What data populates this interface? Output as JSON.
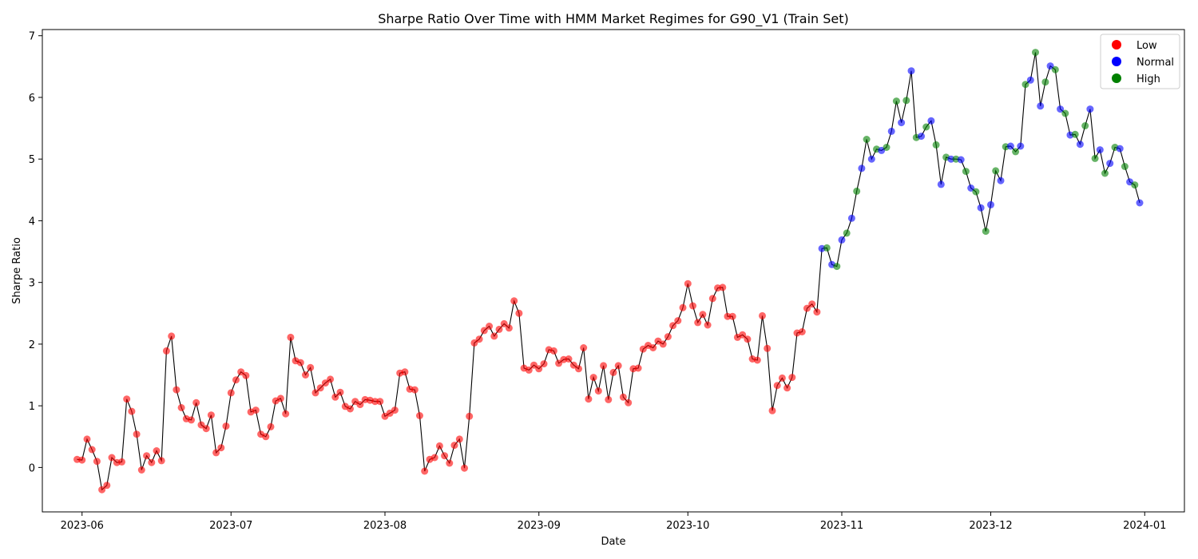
{
  "chart_data": {
    "type": "scatter",
    "title": "Sharpe Ratio Over Time with HMM Market Regimes for G90_V1 (Train Set)",
    "xlabel": "Date",
    "ylabel": "Sharpe Ratio",
    "xlim": [
      "2023-05-24",
      "2024-01-09"
    ],
    "ylim": [
      -0.72,
      7.1
    ],
    "xticks": [
      "2023-06",
      "2023-07",
      "2023-08",
      "2023-09",
      "2023-10",
      "2023-11",
      "2023-12",
      "2024-01"
    ],
    "yticks": [
      0,
      1,
      2,
      3,
      4,
      5,
      6,
      7
    ],
    "grid": false,
    "legend_position": "top-right",
    "line_color": "#000000",
    "regimes": [
      {
        "name": "Low",
        "color": "#ff0000"
      },
      {
        "name": "Normal",
        "color": "#0000ff"
      },
      {
        "name": "High",
        "color": "#008000"
      }
    ],
    "x": [
      "2023-05-31",
      "2023-06-01",
      "2023-06-02",
      "2023-06-03",
      "2023-06-04",
      "2023-06-05",
      "2023-06-06",
      "2023-06-07",
      "2023-06-08",
      "2023-06-09",
      "2023-06-10",
      "2023-06-11",
      "2023-06-12",
      "2023-06-13",
      "2023-06-14",
      "2023-06-15",
      "2023-06-16",
      "2023-06-17",
      "2023-06-18",
      "2023-06-19",
      "2023-06-20",
      "2023-06-21",
      "2023-06-22",
      "2023-06-23",
      "2023-06-24",
      "2023-06-25",
      "2023-06-26",
      "2023-06-27",
      "2023-06-28",
      "2023-06-29",
      "2023-06-30",
      "2023-07-01",
      "2023-07-02",
      "2023-07-03",
      "2023-07-04",
      "2023-07-05",
      "2023-07-06",
      "2023-07-07",
      "2023-07-08",
      "2023-07-09",
      "2023-07-10",
      "2023-07-11",
      "2023-07-12",
      "2023-07-13",
      "2023-07-14",
      "2023-07-15",
      "2023-07-16",
      "2023-07-17",
      "2023-07-18",
      "2023-07-19",
      "2023-07-20",
      "2023-07-21",
      "2023-07-22",
      "2023-07-23",
      "2023-07-24",
      "2023-07-25",
      "2023-07-26",
      "2023-07-27",
      "2023-07-28",
      "2023-07-29",
      "2023-07-30",
      "2023-07-31",
      "2023-08-01",
      "2023-08-02",
      "2023-08-03",
      "2023-08-04",
      "2023-08-05",
      "2023-08-06",
      "2023-08-07",
      "2023-08-08",
      "2023-08-09",
      "2023-08-10",
      "2023-08-11",
      "2023-08-12",
      "2023-08-13",
      "2023-08-14",
      "2023-08-15",
      "2023-08-16",
      "2023-08-17",
      "2023-08-18",
      "2023-08-19",
      "2023-08-20",
      "2023-08-21",
      "2023-08-22",
      "2023-08-23",
      "2023-08-24",
      "2023-08-25",
      "2023-08-26",
      "2023-08-27",
      "2023-08-28",
      "2023-08-29",
      "2023-08-30",
      "2023-08-31",
      "2023-09-01",
      "2023-09-02",
      "2023-09-03",
      "2023-09-04",
      "2023-09-05",
      "2023-09-06",
      "2023-09-07",
      "2023-09-08",
      "2023-09-09",
      "2023-09-10",
      "2023-09-11",
      "2023-09-12",
      "2023-09-13",
      "2023-09-14",
      "2023-09-15",
      "2023-09-16",
      "2023-09-17",
      "2023-09-18",
      "2023-09-19",
      "2023-09-20",
      "2023-09-21",
      "2023-09-22",
      "2023-09-23",
      "2023-09-24",
      "2023-09-25",
      "2023-09-26",
      "2023-09-27",
      "2023-09-28",
      "2023-09-29",
      "2023-09-30",
      "2023-10-01",
      "2023-10-02",
      "2023-10-03",
      "2023-10-04",
      "2023-10-05",
      "2023-10-06",
      "2023-10-07",
      "2023-10-08",
      "2023-10-09",
      "2023-10-10",
      "2023-10-11",
      "2023-10-12",
      "2023-10-13",
      "2023-10-14",
      "2023-10-15",
      "2023-10-16",
      "2023-10-17",
      "2023-10-18",
      "2023-10-19",
      "2023-10-20",
      "2023-10-21",
      "2023-10-22",
      "2023-10-23",
      "2023-10-24",
      "2023-10-25",
      "2023-10-26",
      "2023-10-27",
      "2023-10-28",
      "2023-10-29",
      "2023-10-30",
      "2023-10-31",
      "2023-11-01",
      "2023-11-02",
      "2023-11-03",
      "2023-11-04",
      "2023-11-05",
      "2023-11-06",
      "2023-11-07",
      "2023-11-08",
      "2023-11-09",
      "2023-11-10",
      "2023-11-11",
      "2023-11-12",
      "2023-11-13",
      "2023-11-14",
      "2023-11-15",
      "2023-11-16",
      "2023-11-17",
      "2023-11-18",
      "2023-11-19",
      "2023-11-20",
      "2023-11-21",
      "2023-11-22",
      "2023-11-23",
      "2023-11-24",
      "2023-11-25",
      "2023-11-26",
      "2023-11-27",
      "2023-11-28",
      "2023-11-29",
      "2023-11-30",
      "2023-12-01",
      "2023-12-02",
      "2023-12-03",
      "2023-12-04",
      "2023-12-05",
      "2023-12-06",
      "2023-12-07",
      "2023-12-08",
      "2023-12-09",
      "2023-12-10",
      "2023-12-11",
      "2023-12-12",
      "2023-12-13",
      "2023-12-14",
      "2023-12-15",
      "2023-12-16",
      "2023-12-17",
      "2023-12-18",
      "2023-12-19",
      "2023-12-20",
      "2023-12-21",
      "2023-12-22",
      "2023-12-23",
      "2023-12-24",
      "2023-12-25",
      "2023-12-26",
      "2023-12-27",
      "2023-12-28",
      "2023-12-29",
      "2023-12-30",
      "2023-12-31"
    ],
    "y": [
      0.13,
      0.12,
      0.46,
      0.29,
      0.1,
      -0.36,
      -0.29,
      0.16,
      0.08,
      0.09,
      1.11,
      0.91,
      0.54,
      -0.04,
      0.19,
      0.08,
      0.27,
      0.11,
      1.89,
      2.13,
      1.26,
      0.97,
      0.79,
      0.77,
      1.05,
      0.69,
      0.63,
      0.85,
      0.24,
      0.32,
      0.67,
      1.21,
      1.42,
      1.55,
      1.49,
      0.9,
      0.93,
      0.54,
      0.5,
      0.66,
      1.08,
      1.12,
      0.87,
      2.11,
      1.73,
      1.7,
      1.5,
      1.62,
      1.21,
      1.29,
      1.37,
      1.43,
      1.14,
      1.22,
      0.99,
      0.95,
      1.07,
      1.02,
      1.1,
      1.09,
      1.07,
      1.07,
      0.83,
      0.88,
      0.93,
      1.53,
      1.55,
      1.27,
      1.26,
      0.84,
      -0.06,
      0.13,
      0.16,
      0.35,
      0.19,
      0.07,
      0.36,
      0.46,
      -0.01,
      0.83,
      2.02,
      2.08,
      2.22,
      2.29,
      2.13,
      2.24,
      2.33,
      2.26,
      2.7,
      2.5,
      1.61,
      1.58,
      1.66,
      1.6,
      1.68,
      1.91,
      1.89,
      1.69,
      1.75,
      1.76,
      1.66,
      1.6,
      1.94,
      1.11,
      1.46,
      1.24,
      1.65,
      1.1,
      1.54,
      1.65,
      1.14,
      1.05,
      1.6,
      1.61,
      1.92,
      1.98,
      1.94,
      2.05,
      2.0,
      2.12,
      2.3,
      2.38,
      2.59,
      2.98,
      2.62,
      2.35,
      2.48,
      2.31,
      2.74,
      2.91,
      2.92,
      2.45,
      2.45,
      2.11,
      2.15,
      2.08,
      1.76,
      1.74,
      2.46,
      1.93,
      0.92,
      1.33,
      1.45,
      1.29,
      1.46,
      2.18,
      2.2,
      2.58,
      2.65,
      2.52,
      3.55,
      3.56,
      3.29,
      3.26,
      3.69,
      3.8,
      4.04,
      4.48,
      4.85,
      5.32,
      5.0,
      5.16,
      5.14,
      5.19,
      5.45,
      5.94,
      5.59,
      5.95,
      6.43,
      5.35,
      5.37,
      5.52,
      5.62,
      5.23,
      4.59,
      5.03,
      5.0,
      5.0,
      4.99,
      4.8,
      4.53,
      4.47,
      4.21,
      3.83,
      4.26,
      4.81,
      4.65,
      5.2,
      5.21,
      5.12,
      5.21,
      6.21,
      6.28,
      6.73,
      5.86,
      6.25,
      6.51,
      6.45,
      5.81,
      5.74,
      5.39,
      5.4,
      5.24,
      5.54,
      5.81,
      5.01,
      5.15,
      4.77,
      4.93,
      5.19,
      5.17,
      4.88,
      4.63,
      4.58,
      4.29
    ],
    "regime": [
      "Low",
      "Low",
      "Low",
      "Low",
      "Low",
      "Low",
      "Low",
      "Low",
      "Low",
      "Low",
      "Low",
      "Low",
      "Low",
      "Low",
      "Low",
      "Low",
      "Low",
      "Low",
      "Low",
      "Low",
      "Low",
      "Low",
      "Low",
      "Low",
      "Low",
      "Low",
      "Low",
      "Low",
      "Low",
      "Low",
      "Low",
      "Low",
      "Low",
      "Low",
      "Low",
      "Low",
      "Low",
      "Low",
      "Low",
      "Low",
      "Low",
      "Low",
      "Low",
      "Low",
      "Low",
      "Low",
      "Low",
      "Low",
      "Low",
      "Low",
      "Low",
      "Low",
      "Low",
      "Low",
      "Low",
      "Low",
      "Low",
      "Low",
      "Low",
      "Low",
      "Low",
      "Low",
      "Low",
      "Low",
      "Low",
      "Low",
      "Low",
      "Low",
      "Low",
      "Low",
      "Low",
      "Low",
      "Low",
      "Low",
      "Low",
      "Low",
      "Low",
      "Low",
      "Low",
      "Low",
      "Low",
      "Low",
      "Low",
      "Low",
      "Low",
      "Low",
      "Low",
      "Low",
      "Low",
      "Low",
      "Low",
      "Low",
      "Low",
      "Low",
      "Low",
      "Low",
      "Low",
      "Low",
      "Low",
      "Low",
      "Low",
      "Low",
      "Low",
      "Low",
      "Low",
      "Low",
      "Low",
      "Low",
      "Low",
      "Low",
      "Low",
      "Low",
      "Low",
      "Low",
      "Low",
      "Low",
      "Low",
      "Low",
      "Low",
      "Low",
      "Low",
      "Low",
      "Low",
      "Low",
      "Low",
      "Low",
      "Low",
      "Low",
      "Low",
      "Low",
      "Low",
      "Low",
      "Low",
      "Low",
      "Low",
      "Low",
      "Low",
      "Low",
      "Low",
      "Low",
      "Low",
      "Low",
      "Low",
      "Low",
      "Low",
      "Low",
      "Low",
      "Low",
      "Low",
      "Low",
      "Normal",
      "High",
      "Normal",
      "High",
      "Normal",
      "High",
      "Normal",
      "High",
      "Normal",
      "High",
      "Normal",
      "High",
      "Normal",
      "High",
      "Normal",
      "High",
      "Normal",
      "High",
      "Normal",
      "High",
      "Normal",
      "High",
      "Normal",
      "High",
      "Normal",
      "High",
      "Normal",
      "High",
      "Normal",
      "High",
      "Normal",
      "High",
      "Normal",
      "High",
      "Normal",
      "High",
      "Normal",
      "High",
      "Normal",
      "High",
      "Normal",
      "High",
      "Normal",
      "High",
      "Normal",
      "High",
      "Normal",
      "High",
      "Normal",
      "High",
      "Normal",
      "High",
      "Normal",
      "High",
      "Normal",
      "High",
      "Normal",
      "High",
      "Normal",
      "High",
      "Normal",
      "High",
      "Normal",
      "High",
      "Normal",
      "Normal"
    ]
  }
}
